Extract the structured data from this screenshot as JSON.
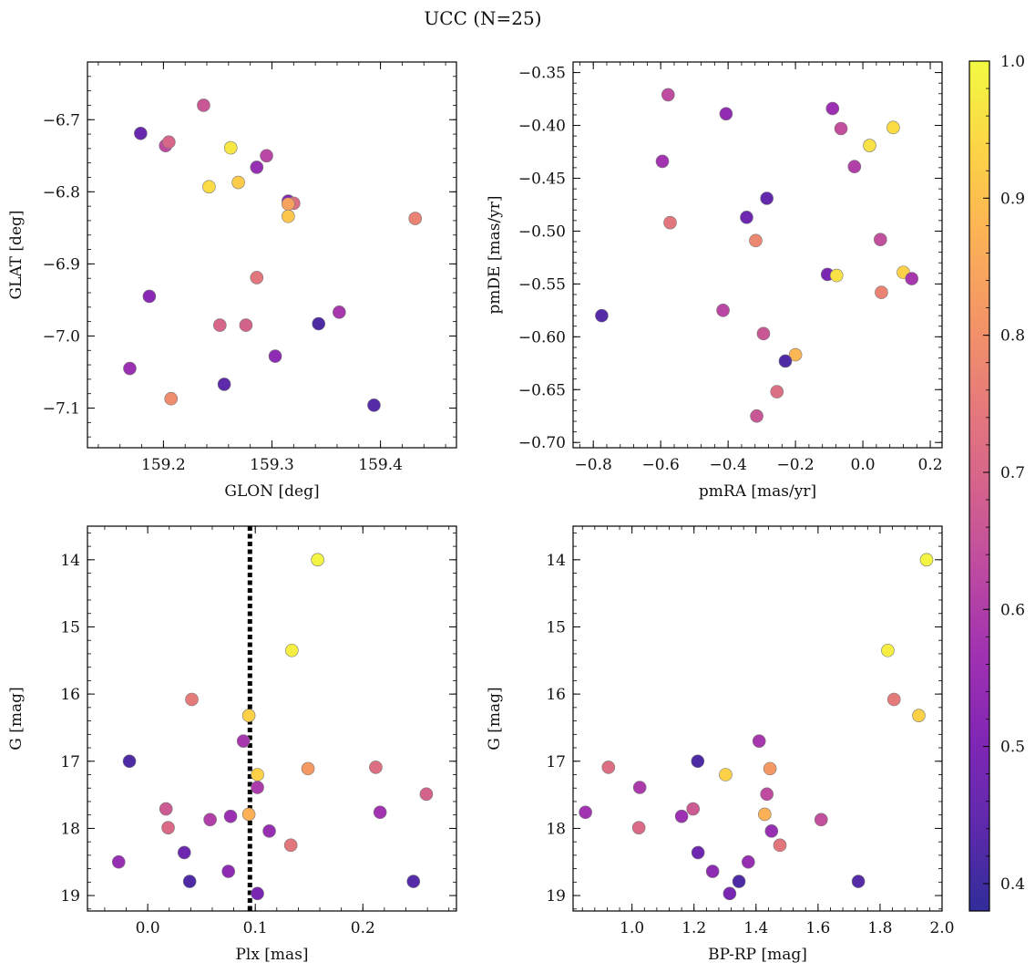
{
  "figure": {
    "title": "UCC (N=25)"
  },
  "colorbar": {
    "min": 0.38,
    "max": 1.0,
    "ticks": [
      "0.4",
      "0.5",
      "0.6",
      "0.7",
      "0.8",
      "0.9",
      "1.0"
    ],
    "colormap": "plasma"
  },
  "chart_data": [
    {
      "type": "scatter",
      "xlabel": "GLON [deg]",
      "ylabel": "GLAT [deg]",
      "xlim": [
        159.13,
        159.47
      ],
      "ylim": [
        -7.155,
        -6.62
      ],
      "y_inverted": false,
      "xticks": [
        159.2,
        159.3,
        159.4
      ],
      "xticklabels": [
        "159.2",
        "159.3",
        "159.4"
      ],
      "yticks": [
        -6.7,
        -6.8,
        -6.9,
        -7.0,
        -7.1
      ],
      "yticklabels": [
        "−6.7",
        "−6.8",
        "−6.9",
        "−7.0",
        "−7.1"
      ],
      "points": [
        {
          "x": 159.179,
          "y": -6.719,
          "c": 0.46
        },
        {
          "x": 159.237,
          "y": -6.68,
          "c": 0.66
        },
        {
          "x": 159.202,
          "y": -6.736,
          "c": 0.63
        },
        {
          "x": 159.205,
          "y": -6.731,
          "c": 0.7
        },
        {
          "x": 159.262,
          "y": -6.739,
          "c": 0.97
        },
        {
          "x": 159.295,
          "y": -6.75,
          "c": 0.62
        },
        {
          "x": 159.286,
          "y": -6.766,
          "c": 0.55
        },
        {
          "x": 159.242,
          "y": -6.793,
          "c": 0.95
        },
        {
          "x": 159.269,
          "y": -6.787,
          "c": 0.92
        },
        {
          "x": 159.315,
          "y": -6.813,
          "c": 0.51
        },
        {
          "x": 159.32,
          "y": -6.816,
          "c": 0.72
        },
        {
          "x": 159.315,
          "y": -6.817,
          "c": 0.84
        },
        {
          "x": 159.315,
          "y": -6.834,
          "c": 0.91
        },
        {
          "x": 159.432,
          "y": -6.837,
          "c": 0.77
        },
        {
          "x": 159.286,
          "y": -6.919,
          "c": 0.74
        },
        {
          "x": 159.187,
          "y": -6.945,
          "c": 0.52
        },
        {
          "x": 159.252,
          "y": -6.985,
          "c": 0.7
        },
        {
          "x": 159.276,
          "y": -6.985,
          "c": 0.69
        },
        {
          "x": 159.343,
          "y": -6.983,
          "c": 0.42
        },
        {
          "x": 159.362,
          "y": -6.967,
          "c": 0.58
        },
        {
          "x": 159.303,
          "y": -7.028,
          "c": 0.53
        },
        {
          "x": 159.169,
          "y": -7.045,
          "c": 0.56
        },
        {
          "x": 159.207,
          "y": -7.087,
          "c": 0.79
        },
        {
          "x": 159.256,
          "y": -7.067,
          "c": 0.44
        },
        {
          "x": 159.394,
          "y": -7.096,
          "c": 0.43
        }
      ]
    },
    {
      "type": "scatter",
      "xlabel": "pmRA [mas/yr]",
      "ylabel": "pmDE [mas/yr]",
      "xlim": [
        -0.86,
        0.235
      ],
      "ylim": [
        -0.705,
        -0.34
      ],
      "y_inverted": false,
      "xticks": [
        -0.8,
        -0.6,
        -0.4,
        -0.2,
        0.0,
        0.2
      ],
      "xticklabels": [
        "−0.8",
        "−0.6",
        "−0.4",
        "−0.2",
        "0.0",
        "0.2"
      ],
      "yticks": [
        -0.35,
        -0.4,
        -0.45,
        -0.5,
        -0.55,
        -0.6,
        -0.65,
        -0.7
      ],
      "yticklabels": [
        "−0.35",
        "−0.40",
        "−0.45",
        "−0.50",
        "−0.55",
        "−0.60",
        "−0.65",
        "−0.70"
      ],
      "points": [
        {
          "x": -0.578,
          "y": -0.371,
          "c": 0.63
        },
        {
          "x": -0.406,
          "y": -0.389,
          "c": 0.54
        },
        {
          "x": -0.09,
          "y": -0.384,
          "c": 0.56
        },
        {
          "x": -0.065,
          "y": -0.403,
          "c": 0.64
        },
        {
          "x": 0.09,
          "y": -0.402,
          "c": 0.95
        },
        {
          "x": 0.02,
          "y": -0.419,
          "c": 0.96
        },
        {
          "x": -0.595,
          "y": -0.434,
          "c": 0.57
        },
        {
          "x": -0.025,
          "y": -0.439,
          "c": 0.6
        },
        {
          "x": -0.285,
          "y": -0.469,
          "c": 0.45
        },
        {
          "x": -0.345,
          "y": -0.487,
          "c": 0.47
        },
        {
          "x": -0.572,
          "y": -0.492,
          "c": 0.74
        },
        {
          "x": -0.318,
          "y": -0.509,
          "c": 0.78
        },
        {
          "x": 0.052,
          "y": -0.508,
          "c": 0.64
        },
        {
          "x": 0.12,
          "y": -0.539,
          "c": 0.93
        },
        {
          "x": -0.105,
          "y": -0.541,
          "c": 0.49
        },
        {
          "x": -0.078,
          "y": -0.542,
          "c": 0.96
        },
        {
          "x": 0.145,
          "y": -0.545,
          "c": 0.58
        },
        {
          "x": 0.055,
          "y": -0.558,
          "c": 0.77
        },
        {
          "x": -0.775,
          "y": -0.58,
          "c": 0.43
        },
        {
          "x": -0.415,
          "y": -0.575,
          "c": 0.62
        },
        {
          "x": -0.295,
          "y": -0.597,
          "c": 0.66
        },
        {
          "x": -0.2,
          "y": -0.617,
          "c": 0.88
        },
        {
          "x": -0.23,
          "y": -0.623,
          "c": 0.42
        },
        {
          "x": -0.255,
          "y": -0.652,
          "c": 0.72
        },
        {
          "x": -0.315,
          "y": -0.675,
          "c": 0.66
        }
      ]
    },
    {
      "type": "scatter",
      "xlabel": "Plx [mas]",
      "ylabel": "G [mag]",
      "xlim": [
        -0.056,
        0.287
      ],
      "ylim": [
        13.5,
        19.23
      ],
      "y_inverted": true,
      "xticks": [
        0.0,
        0.1,
        0.2
      ],
      "xticklabels": [
        "0.0",
        "0.1",
        "0.2"
      ],
      "yticks": [
        14,
        15,
        16,
        17,
        18,
        19
      ],
      "yticklabels": [
        "14",
        "15",
        "16",
        "17",
        "18",
        "19"
      ],
      "vline": {
        "x": 0.095,
        "style": "dotted"
      },
      "points": [
        {
          "x": 0.158,
          "y": 14.0,
          "c": 0.99
        },
        {
          "x": 0.134,
          "y": 15.35,
          "c": 0.98
        },
        {
          "x": 0.041,
          "y": 16.08,
          "c": 0.75
        },
        {
          "x": 0.094,
          "y": 16.32,
          "c": 0.93
        },
        {
          "x": 0.089,
          "y": 16.7,
          "c": 0.58
        },
        {
          "x": -0.017,
          "y": 17.0,
          "c": 0.42
        },
        {
          "x": 0.102,
          "y": 17.2,
          "c": 0.93
        },
        {
          "x": 0.149,
          "y": 17.11,
          "c": 0.82
        },
        {
          "x": 0.212,
          "y": 17.09,
          "c": 0.72
        },
        {
          "x": 0.259,
          "y": 17.49,
          "c": 0.69
        },
        {
          "x": 0.102,
          "y": 17.39,
          "c": 0.59
        },
        {
          "x": 0.017,
          "y": 17.71,
          "c": 0.67
        },
        {
          "x": 0.019,
          "y": 17.99,
          "c": 0.71
        },
        {
          "x": 0.058,
          "y": 17.87,
          "c": 0.6
        },
        {
          "x": 0.077,
          "y": 17.82,
          "c": 0.56
        },
        {
          "x": 0.094,
          "y": 17.79,
          "c": 0.87
        },
        {
          "x": 0.216,
          "y": 17.76,
          "c": 0.57
        },
        {
          "x": 0.113,
          "y": 18.04,
          "c": 0.55
        },
        {
          "x": 0.133,
          "y": 18.25,
          "c": 0.74
        },
        {
          "x": 0.034,
          "y": 18.36,
          "c": 0.47
        },
        {
          "x": -0.027,
          "y": 18.5,
          "c": 0.55
        },
        {
          "x": 0.075,
          "y": 18.64,
          "c": 0.53
        },
        {
          "x": 0.039,
          "y": 18.79,
          "c": 0.42
        },
        {
          "x": 0.102,
          "y": 18.97,
          "c": 0.49
        },
        {
          "x": 0.247,
          "y": 18.79,
          "c": 0.43
        }
      ]
    },
    {
      "type": "scatter",
      "xlabel": "BP-RP [mag]",
      "ylabel": "G [mag]",
      "xlim": [
        0.81,
        2.0
      ],
      "ylim": [
        13.5,
        19.23
      ],
      "y_inverted": true,
      "xticks": [
        1.0,
        1.2,
        1.4,
        1.6,
        1.8,
        2.0
      ],
      "xticklabels": [
        "1.0",
        "1.2",
        "1.4",
        "1.6",
        "1.8",
        "2.0"
      ],
      "yticks": [
        14,
        15,
        16,
        17,
        18,
        19
      ],
      "yticklabels": [
        "14",
        "15",
        "16",
        "17",
        "18",
        "19"
      ],
      "points": [
        {
          "x": 1.95,
          "y": 14.0,
          "c": 0.99
        },
        {
          "x": 1.825,
          "y": 15.35,
          "c": 0.98
        },
        {
          "x": 1.845,
          "y": 16.08,
          "c": 0.75
        },
        {
          "x": 1.925,
          "y": 16.32,
          "c": 0.93
        },
        {
          "x": 1.41,
          "y": 16.7,
          "c": 0.58
        },
        {
          "x": 1.212,
          "y": 17.0,
          "c": 0.42
        },
        {
          "x": 1.302,
          "y": 17.2,
          "c": 0.93
        },
        {
          "x": 1.445,
          "y": 17.11,
          "c": 0.82
        },
        {
          "x": 0.924,
          "y": 17.09,
          "c": 0.72
        },
        {
          "x": 1.435,
          "y": 17.49,
          "c": 0.63
        },
        {
          "x": 1.025,
          "y": 17.39,
          "c": 0.59
        },
        {
          "x": 1.197,
          "y": 17.71,
          "c": 0.67
        },
        {
          "x": 1.022,
          "y": 17.99,
          "c": 0.71
        },
        {
          "x": 1.16,
          "y": 17.82,
          "c": 0.56
        },
        {
          "x": 1.428,
          "y": 17.79,
          "c": 0.87
        },
        {
          "x": 0.85,
          "y": 17.76,
          "c": 0.57
        },
        {
          "x": 1.61,
          "y": 17.87,
          "c": 0.64
        },
        {
          "x": 1.45,
          "y": 18.04,
          "c": 0.55
        },
        {
          "x": 1.477,
          "y": 18.25,
          "c": 0.74
        },
        {
          "x": 1.213,
          "y": 18.36,
          "c": 0.47
        },
        {
          "x": 1.375,
          "y": 18.5,
          "c": 0.55
        },
        {
          "x": 1.26,
          "y": 18.64,
          "c": 0.53
        },
        {
          "x": 1.345,
          "y": 18.79,
          "c": 0.42
        },
        {
          "x": 1.315,
          "y": 18.97,
          "c": 0.49
        },
        {
          "x": 1.73,
          "y": 18.79,
          "c": 0.43
        }
      ]
    }
  ]
}
